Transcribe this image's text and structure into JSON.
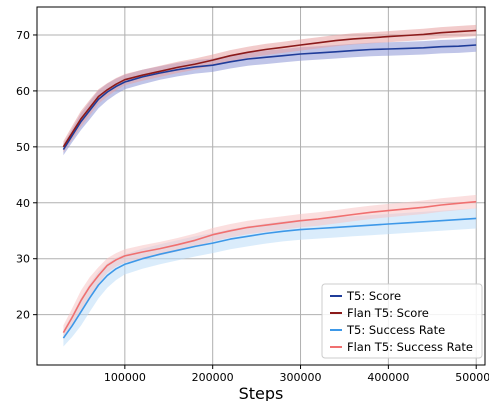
{
  "chart_data": {
    "type": "line",
    "title": "",
    "xlabel": "Steps",
    "ylabel": "",
    "xlim": [
      0,
      510000
    ],
    "ylim": [
      11,
      75
    ],
    "xticks": [
      100000,
      200000,
      300000,
      400000,
      500000
    ],
    "yticks": [
      20,
      30,
      40,
      50,
      60,
      70
    ],
    "grid": true,
    "legend_position": "bottom-right",
    "x": [
      30000,
      40000,
      50000,
      60000,
      70000,
      80000,
      90000,
      100000,
      120000,
      140000,
      160000,
      180000,
      200000,
      220000,
      240000,
      260000,
      280000,
      300000,
      320000,
      340000,
      360000,
      380000,
      400000,
      420000,
      440000,
      460000,
      480000,
      500000
    ],
    "series": [
      {
        "name": "T5: Score",
        "color": "#1f3c99",
        "band_color": "#8c96d6",
        "values": [
          49.5,
          52.0,
          54.5,
          56.5,
          58.5,
          59.8,
          60.8,
          61.6,
          62.5,
          63.2,
          63.8,
          64.3,
          64.6,
          65.2,
          65.7,
          66.0,
          66.3,
          66.6,
          66.8,
          67.0,
          67.2,
          67.4,
          67.5,
          67.6,
          67.7,
          67.9,
          68.0,
          68.2
        ],
        "spread": [
          1.0,
          1.2,
          1.5,
          1.6,
          1.6,
          1.5,
          1.4,
          1.3,
          1.3,
          1.2,
          1.2,
          1.2,
          1.2,
          1.2,
          1.2,
          1.2,
          1.2,
          1.2,
          1.2,
          1.2,
          1.2,
          1.2,
          1.2,
          1.2,
          1.2,
          1.2,
          1.2,
          1.2
        ]
      },
      {
        "name": "Flan T5: Score",
        "color": "#8b1a1a",
        "band_color": "#e8a0a0",
        "values": [
          50.0,
          52.5,
          55.0,
          57.0,
          59.0,
          60.2,
          61.2,
          62.0,
          62.8,
          63.5,
          64.2,
          64.8,
          65.5,
          66.3,
          66.9,
          67.4,
          67.8,
          68.2,
          68.6,
          69.0,
          69.3,
          69.5,
          69.7,
          69.9,
          70.1,
          70.4,
          70.6,
          70.8
        ],
        "spread": [
          1.0,
          1.2,
          1.4,
          1.4,
          1.3,
          1.2,
          1.1,
          1.0,
          1.0,
          1.0,
          1.0,
          1.0,
          1.0,
          1.0,
          1.0,
          1.0,
          1.0,
          1.0,
          1.0,
          1.0,
          1.0,
          1.0,
          1.0,
          1.0,
          1.0,
          1.0,
          1.0,
          1.0
        ]
      },
      {
        "name": "T5: Success Rate",
        "color": "#3d98e8",
        "band_color": "#bcdcf7",
        "values": [
          15.8,
          18.0,
          20.5,
          23.0,
          25.3,
          27.0,
          28.2,
          29.0,
          30.0,
          30.8,
          31.5,
          32.2,
          32.8,
          33.5,
          34.0,
          34.5,
          34.9,
          35.2,
          35.4,
          35.6,
          35.8,
          36.0,
          36.2,
          36.4,
          36.6,
          36.8,
          37.0,
          37.2
        ],
        "spread": [
          1.5,
          2.0,
          2.5,
          2.5,
          2.4,
          2.2,
          2.0,
          1.8,
          1.8,
          1.8,
          1.8,
          1.8,
          1.8,
          1.8,
          1.8,
          1.8,
          1.8,
          1.8,
          1.8,
          1.8,
          1.8,
          1.8,
          1.8,
          1.8,
          1.8,
          1.8,
          1.8,
          1.8
        ]
      },
      {
        "name": "Flan T5: Success Rate",
        "color": "#f07070",
        "band_color": "#f7c4c4",
        "values": [
          16.8,
          19.5,
          22.5,
          25.0,
          27.0,
          28.8,
          29.8,
          30.5,
          31.2,
          31.8,
          32.5,
          33.3,
          34.3,
          35.0,
          35.6,
          36.0,
          36.4,
          36.8,
          37.1,
          37.5,
          37.9,
          38.3,
          38.6,
          38.9,
          39.2,
          39.6,
          39.9,
          40.2
        ],
        "spread": [
          1.3,
          1.6,
          1.8,
          1.7,
          1.5,
          1.3,
          1.2,
          1.2,
          1.2,
          1.2,
          1.2,
          1.2,
          1.2,
          1.2,
          1.2,
          1.2,
          1.2,
          1.2,
          1.2,
          1.2,
          1.2,
          1.2,
          1.2,
          1.2,
          1.2,
          1.2,
          1.2,
          1.2
        ]
      }
    ]
  }
}
